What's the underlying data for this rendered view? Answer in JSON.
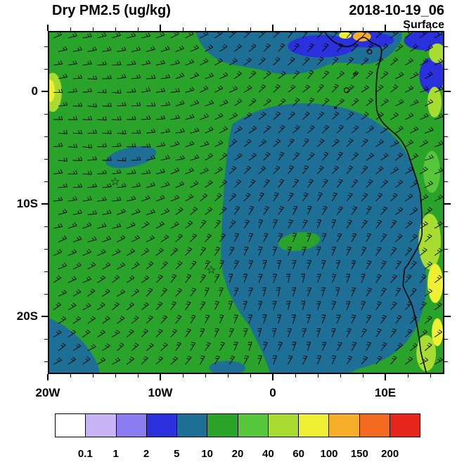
{
  "header": {
    "title": "Dry PM2.5 (ug/kg)",
    "datetime": "2018-10-19_06",
    "level": "Surface"
  },
  "chart_data": {
    "type": "heatmap",
    "title": "Dry PM2.5 (ug/kg)",
    "valid_time": "2018-10-19_06",
    "level": "Surface",
    "units": "ug/kg",
    "x_axis": {
      "ticks": [
        {
          "label": "20W",
          "lon": -20
        },
        {
          "label": "10W",
          "lon": -10
        },
        {
          "label": "0",
          "lon": 0
        },
        {
          "label": "10E",
          "lon": 10
        }
      ],
      "range_lon": [
        -20,
        15.25
      ]
    },
    "y_axis": {
      "ticks": [
        {
          "label": "0",
          "lat": 0
        },
        {
          "label": "10S",
          "lat": -10
        },
        {
          "label": "20S",
          "lat": -20
        }
      ],
      "range_lat": [
        5.4,
        -25.1
      ]
    },
    "colorbar": {
      "levels": [
        0.1,
        1,
        2,
        5,
        10,
        20,
        40,
        60,
        100,
        150,
        200
      ],
      "colors": [
        "#ffffff",
        "#c8b4f4",
        "#8a7cf0",
        "#2a30dc",
        "#1e6f96",
        "#2aa32a",
        "#56c63a",
        "#a8dc30",
        "#efef34",
        "#f6ad2a",
        "#f2691f",
        "#e8251c"
      ]
    },
    "overlays": {
      "wind_barbs": true,
      "coastline": "west Africa (Cameroon to Namibia) with Gulf of Guinea islands",
      "markers": [
        {
          "type": "open-star",
          "lon": -14.1,
          "lat": -8.0
        },
        {
          "type": "open-star",
          "lon": -5.5,
          "lat": -15.9
        }
      ]
    },
    "field_regions": [
      {
        "region": "western and northwestern basin",
        "value_ugkg": "10-20"
      },
      {
        "region": "large central-eastern gyre and southern basin",
        "value_ugkg": "5-10"
      },
      {
        "region": "equatorial band patches near top",
        "value_ugkg": "2-5"
      },
      {
        "region": "Angola/Namibia coastal strip",
        "value_ugkg": "20-100"
      },
      {
        "region": "Niger delta hotspot",
        "value_ugkg": "100-150"
      }
    ]
  }
}
